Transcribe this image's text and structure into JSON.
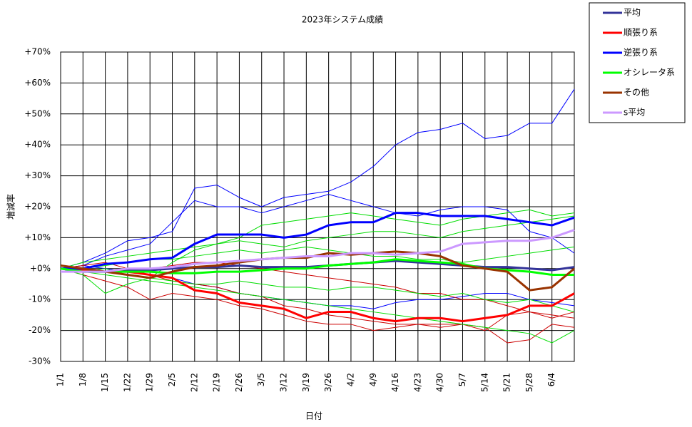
{
  "chart_data": {
    "type": "line",
    "title": "2023年システム成績",
    "x_label": "日付",
    "y_label": "増減率",
    "categories": [
      "1/1",
      "1/8",
      "1/15",
      "1/22",
      "1/29",
      "2/5",
      "2/12",
      "2/19",
      "2/26",
      "3/5",
      "3/12",
      "3/19",
      "3/26",
      "4/2",
      "4/9",
      "4/16",
      "4/23",
      "4/30",
      "5/7",
      "5/14",
      "5/21",
      "5/28",
      "6/4",
      null
    ],
    "ylim": [
      -30,
      70
    ],
    "yticks": [
      {
        "value": -30,
        "label": "-30%"
      },
      {
        "value": -20,
        "label": "-20%"
      },
      {
        "value": -10,
        "label": "-10%"
      },
      {
        "value": 0,
        "label": "+0%"
      },
      {
        "value": 10,
        "label": "+10%"
      },
      {
        "value": 20,
        "label": "+20%"
      },
      {
        "value": 30,
        "label": "+30%"
      },
      {
        "value": 40,
        "label": "+40%"
      },
      {
        "value": 50,
        "label": "+50%"
      },
      {
        "value": 60,
        "label": "+60%"
      },
      {
        "value": 70,
        "label": "+70%"
      }
    ],
    "grid": true,
    "legend": "outside-right",
    "series": [
      {
        "color": "#0000ff",
        "values": [
          0,
          2,
          5,
          9,
          10,
          12,
          26,
          27,
          23,
          20,
          23,
          24,
          25,
          28,
          33,
          40,
          44,
          45,
          47,
          42,
          43,
          47,
          47,
          58
        ]
      },
      {
        "color": "#0000ff",
        "values": [
          0,
          1,
          4,
          6,
          8,
          15,
          22,
          20,
          20,
          18,
          20,
          22,
          24,
          22,
          20,
          18,
          17,
          19,
          20,
          20,
          19,
          12,
          10,
          5
        ]
      },
      {
        "color": "#0000ff",
        "values": [
          0,
          1,
          0,
          -1,
          -2,
          -3,
          -5,
          -6,
          -8,
          -9,
          -10,
          -11,
          -12,
          -12,
          -13,
          -11,
          -10,
          -10,
          -9,
          -8,
          -8,
          -10,
          -11,
          -12
        ]
      },
      {
        "color": "#cc0000",
        "values": [
          0,
          -2,
          -4,
          -6,
          -10,
          -8,
          -9,
          -10,
          -12,
          -13,
          -15,
          -17,
          -18,
          -18,
          -20,
          -19,
          -18,
          -18,
          -18,
          -19,
          -24,
          -23,
          -18,
          -19
        ]
      },
      {
        "color": "#cc0000",
        "values": [
          0,
          1,
          2,
          0,
          -2,
          -4,
          -5,
          -6,
          -8,
          -9,
          -12,
          -13,
          -15,
          -16,
          -17,
          -18,
          -18,
          -19,
          -18,
          -20,
          -15,
          -14,
          -16,
          -14
        ]
      },
      {
        "color": "#cc0000",
        "values": [
          0,
          0,
          -1,
          -1,
          0,
          1,
          2,
          2,
          1,
          0,
          -1,
          -2,
          -3,
          -4,
          -5,
          -6,
          -8,
          -8,
          -10,
          -10,
          -12,
          -14,
          -15,
          -16
        ]
      },
      {
        "color": "#00dd00",
        "values": [
          0,
          -2,
          -8,
          -5,
          -3,
          2,
          6,
          8,
          10,
          14,
          15,
          16,
          17,
          18,
          17,
          16,
          15,
          14,
          16,
          17,
          18,
          19,
          17,
          18
        ]
      },
      {
        "color": "#00dd00",
        "values": [
          0,
          -1,
          -2,
          -3,
          -4,
          -5,
          -6,
          -7,
          -8,
          -9,
          -10,
          -11,
          -12,
          -13,
          -14,
          -15,
          -16,
          -17,
          -18,
          -19,
          -20,
          -21,
          -24,
          -20
        ]
      },
      {
        "color": "#00dd00",
        "values": [
          0,
          2,
          3,
          4,
          5,
          6,
          7,
          8,
          9,
          8,
          7,
          9,
          10,
          11,
          12,
          12,
          11,
          10,
          12,
          13,
          14,
          15,
          16,
          17
        ]
      },
      {
        "color": "#00dd00",
        "values": [
          0,
          -1,
          0,
          -2,
          -3,
          -4,
          -5,
          -5,
          -4,
          -5,
          -6,
          -6,
          -7,
          -6,
          -6,
          -7,
          -8,
          -9,
          -8,
          -10,
          -11,
          -10,
          -12,
          -14
        ]
      },
      {
        "color": "#00dd00",
        "values": [
          0,
          0,
          1,
          2,
          3,
          3,
          4,
          5,
          6,
          5,
          6,
          7,
          6,
          5,
          4,
          4,
          3,
          3,
          2,
          3,
          4,
          5,
          6,
          7
        ]
      },
      {
        "name": "平均",
        "color": "#333399",
        "values": [
          0,
          -1,
          -1,
          -0.5,
          -0.5,
          0,
          0.5,
          0.5,
          1,
          0.5,
          0.5,
          0.5,
          1,
          1.5,
          2,
          2.5,
          2,
          1.5,
          1,
          0.5,
          0.5,
          0,
          -0.5,
          0.5
        ]
      },
      {
        "name": "順張り系",
        "color": "#ff0000",
        "values": [
          0,
          -0.5,
          -1,
          -1,
          -2,
          -3,
          -7,
          -8,
          -11,
          -12,
          -13,
          -16,
          -14,
          -14,
          -16,
          -17,
          -16,
          -16,
          -17,
          -16,
          -15,
          -12,
          -12,
          -8
        ]
      },
      {
        "name": "逆張り系",
        "color": "#0000ff",
        "values": [
          0,
          0,
          1.5,
          2,
          3,
          3.5,
          8,
          11,
          11,
          11,
          10,
          11,
          14,
          15,
          15,
          18,
          18,
          17,
          17,
          17,
          16,
          15,
          14,
          16.5
        ]
      },
      {
        "name": "オシレータ系",
        "color": "#00ff00",
        "values": [
          0,
          -1,
          -1,
          -1,
          -1,
          -1.5,
          -1.5,
          -1,
          -1,
          -0.5,
          0,
          0,
          1,
          1.5,
          2,
          3,
          2.5,
          2,
          1.5,
          0,
          -0.5,
          -1,
          -2,
          -2
        ]
      },
      {
        "name": "その他",
        "color": "#993300",
        "values": [
          1,
          0,
          -1,
          -2,
          -3,
          -1,
          0.5,
          1,
          2,
          3,
          3.5,
          3.5,
          5,
          4.5,
          5,
          5.5,
          5,
          4,
          1,
          0,
          -1,
          -7,
          -6,
          0
        ]
      },
      {
        "name": "s平均",
        "color": "#cc99ff",
        "values": [
          -1,
          -1,
          -1,
          0,
          0,
          0.5,
          1.5,
          2,
          2.5,
          3,
          3.5,
          4,
          4,
          5,
          5,
          4.5,
          5,
          5.5,
          8,
          8.5,
          9,
          9,
          10,
          12.5
        ]
      }
    ]
  }
}
